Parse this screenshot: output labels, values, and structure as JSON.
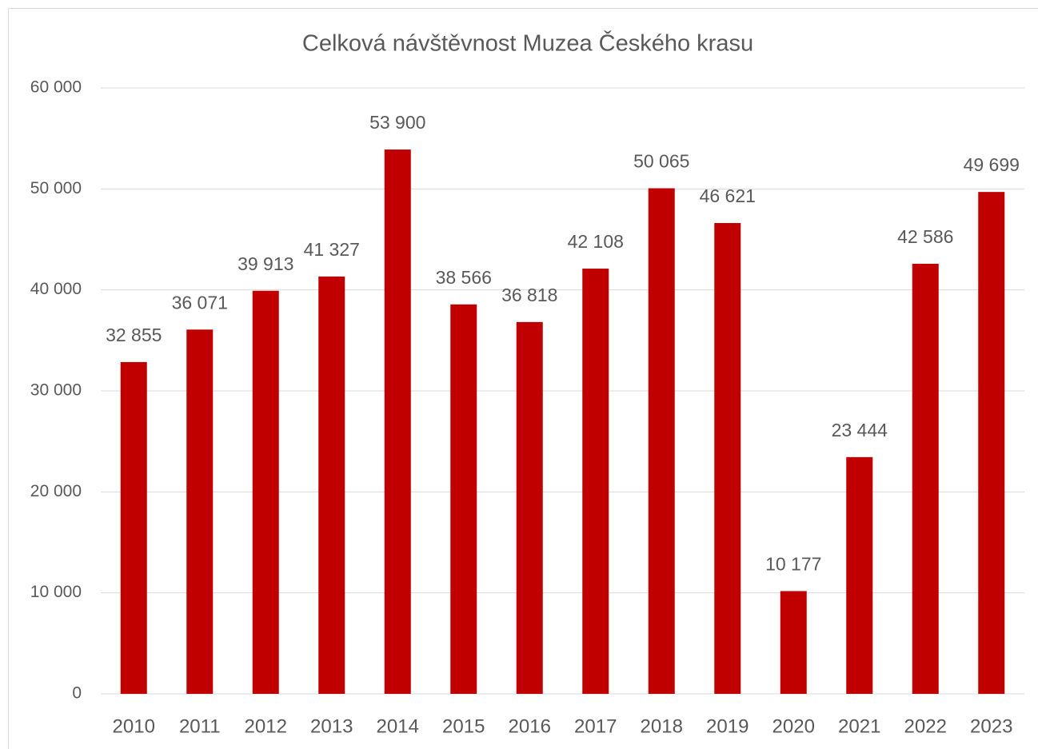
{
  "chart_data": {
    "type": "bar",
    "title": "Celková návštěvnost Muzea Českého krasu",
    "categories": [
      "2010",
      "2011",
      "2012",
      "2013",
      "2014",
      "2015",
      "2016",
      "2017",
      "2018",
      "2019",
      "2020",
      "2021",
      "2022",
      "2023"
    ],
    "values": [
      32855,
      36071,
      39913,
      41327,
      53900,
      38566,
      36818,
      42108,
      50065,
      46621,
      10177,
      23444,
      42586,
      49699
    ],
    "value_labels": [
      "32 855",
      "36 071",
      "39 913",
      "41 327",
      "53 900",
      "38 566",
      "36 818",
      "42 108",
      "50 065",
      "46 621",
      "10 177",
      "23 444",
      "42 586",
      "49 699"
    ],
    "color": "#c00000",
    "ylim": [
      0,
      60000
    ],
    "yticks": [
      0,
      {
        "value": 10000,
        "label": "10 000"
      },
      {
        "value": 20000,
        "label": "20 000"
      },
      {
        "value": 30000,
        "label": "30 000"
      },
      {
        "value": 40000,
        "label": "40 000"
      },
      {
        "value": 50000,
        "label": "50 000"
      },
      {
        "value": 60000,
        "label": "60 000"
      }
    ],
    "grid": true
  }
}
